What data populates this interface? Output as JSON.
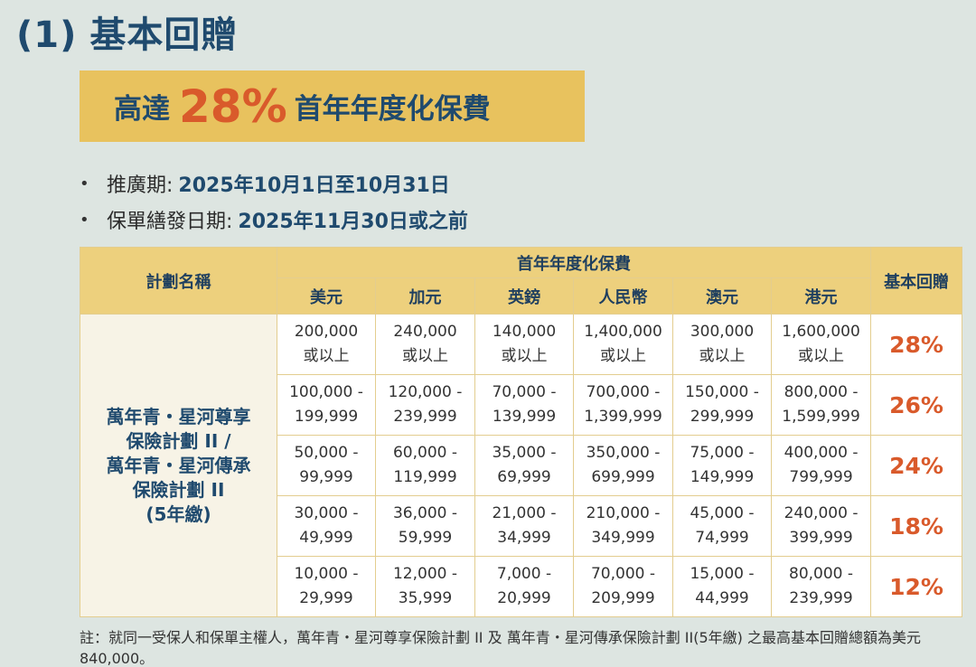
{
  "heading": {
    "number": "(1)",
    "title": "基本回贈"
  },
  "banner": {
    "prefix": "高達",
    "highlight": "28%",
    "suffix": "首年年度化保費"
  },
  "bullets": [
    {
      "label": "推廣期:",
      "value": "2025年10月1日至10月31日"
    },
    {
      "label": "保單繕發日期:",
      "value": "2025年11月30日或之前"
    }
  ],
  "table": {
    "plan_header": "計劃名稱",
    "premium_header": "首年年度化保費",
    "rebate_header": "基本回贈",
    "currencies": [
      "美元",
      "加元",
      "英鎊",
      "人民幣",
      "澳元",
      "港元"
    ],
    "plan_name": [
      "萬年青・星河尊享",
      "保險計劃 II /",
      "萬年青・星河傳承",
      "保險計劃 II",
      "(5年繳)"
    ],
    "rows": [
      {
        "cells": [
          [
            "200,000",
            "或以上"
          ],
          [
            "240,000",
            "或以上"
          ],
          [
            "140,000",
            "或以上"
          ],
          [
            "1,400,000",
            "或以上"
          ],
          [
            "300,000",
            "或以上"
          ],
          [
            "1,600,000",
            "或以上"
          ]
        ],
        "rebate": "28%"
      },
      {
        "cells": [
          [
            "100,000 -",
            "199,999"
          ],
          [
            "120,000 -",
            "239,999"
          ],
          [
            "70,000 -",
            "139,999"
          ],
          [
            "700,000 -",
            "1,399,999"
          ],
          [
            "150,000 -",
            "299,999"
          ],
          [
            "800,000 -",
            "1,599,999"
          ]
        ],
        "rebate": "26%"
      },
      {
        "cells": [
          [
            "50,000 -",
            "99,999"
          ],
          [
            "60,000 -",
            "119,999"
          ],
          [
            "35,000 -",
            "69,999"
          ],
          [
            "350,000 -",
            "699,999"
          ],
          [
            "75,000 -",
            "149,999"
          ],
          [
            "400,000 -",
            "799,999"
          ]
        ],
        "rebate": "24%"
      },
      {
        "cells": [
          [
            "30,000 -",
            "49,999"
          ],
          [
            "36,000 -",
            "59,999"
          ],
          [
            "21,000 -",
            "34,999"
          ],
          [
            "210,000 -",
            "349,999"
          ],
          [
            "45,000 -",
            "74,999"
          ],
          [
            "240,000 -",
            "399,999"
          ]
        ],
        "rebate": "18%"
      },
      {
        "cells": [
          [
            "10,000 -",
            "29,999"
          ],
          [
            "12,000 -",
            "35,999"
          ],
          [
            "7,000 -",
            "20,999"
          ],
          [
            "70,000 -",
            "209,999"
          ],
          [
            "15,000 -",
            "44,999"
          ],
          [
            "80,000 -",
            "239,999"
          ]
        ],
        "rebate": "12%"
      }
    ]
  },
  "note": "註：就同一受保人和保單主權人，萬年青・星河尊享保險計劃 II 及 萬年青・星河傳承保險計劃 II(5年繳) 之最高基本回贈總額為美元840,000。"
}
